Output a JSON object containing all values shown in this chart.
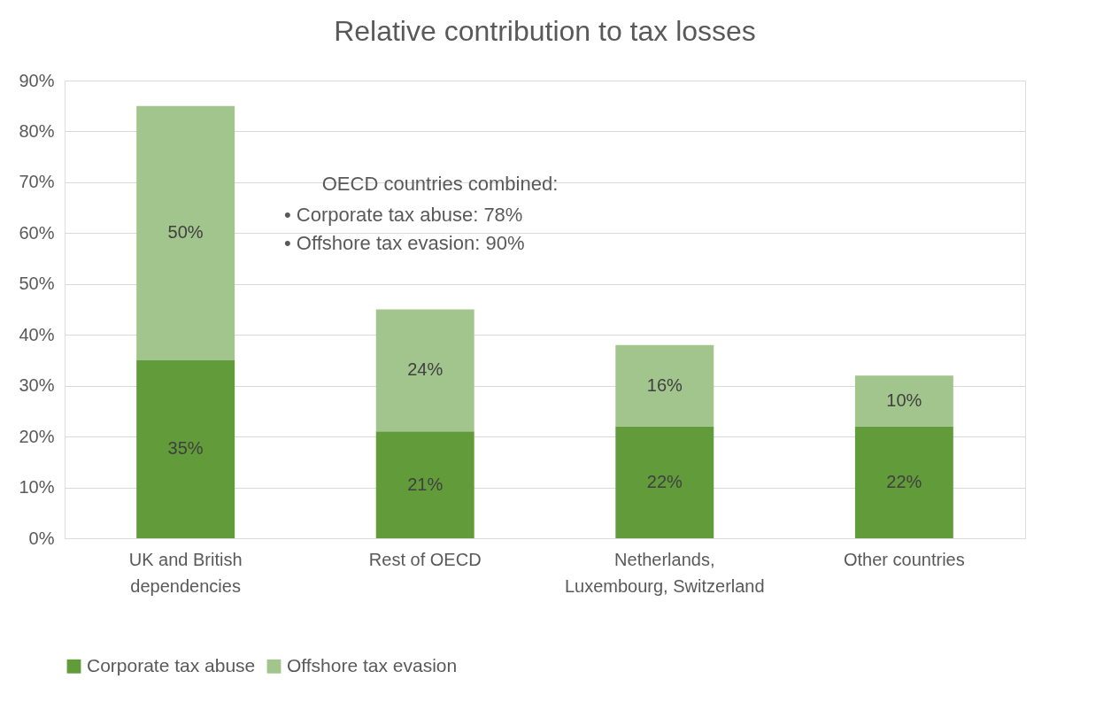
{
  "chart_data": {
    "type": "bar",
    "title": "Relative contribution to tax losses",
    "categories": [
      "UK and British dependencies",
      "Rest of OECD",
      "Netherlands, Luxembourg, Switzerland",
      "Other countries"
    ],
    "stacked": true,
    "series": [
      {
        "name": "Corporate tax abuse",
        "color": "#629b3a",
        "values": [
          35,
          21,
          22,
          22
        ],
        "value_labels": [
          "35%",
          "21%",
          "22%",
          "22%"
        ]
      },
      {
        "name": "Offshore tax evasion",
        "color": "#a2c48d",
        "values": [
          50,
          24,
          16,
          10
        ],
        "value_labels": [
          "50%",
          "24%",
          "16%",
          "10%"
        ]
      }
    ],
    "ylim": [
      0,
      90
    ],
    "yticks": [
      {
        "value": 0,
        "label": "0%"
      },
      {
        "value": 10,
        "label": "10%"
      },
      {
        "value": 20,
        "label": "20%"
      },
      {
        "value": 30,
        "label": "30%"
      },
      {
        "value": 40,
        "label": "40%"
      },
      {
        "value": 50,
        "label": "50%"
      },
      {
        "value": 60,
        "label": "60%"
      },
      {
        "value": 70,
        "label": "70%"
      },
      {
        "value": 80,
        "label": "80%"
      },
      {
        "value": 90,
        "label": "90%"
      }
    ],
    "grid": "y",
    "legend": "bottom",
    "annotations": [
      "OECD countries combined:",
      "•  Corporate tax abuse: 78%",
      "•  Offshore tax evasion: 90%"
    ]
  }
}
